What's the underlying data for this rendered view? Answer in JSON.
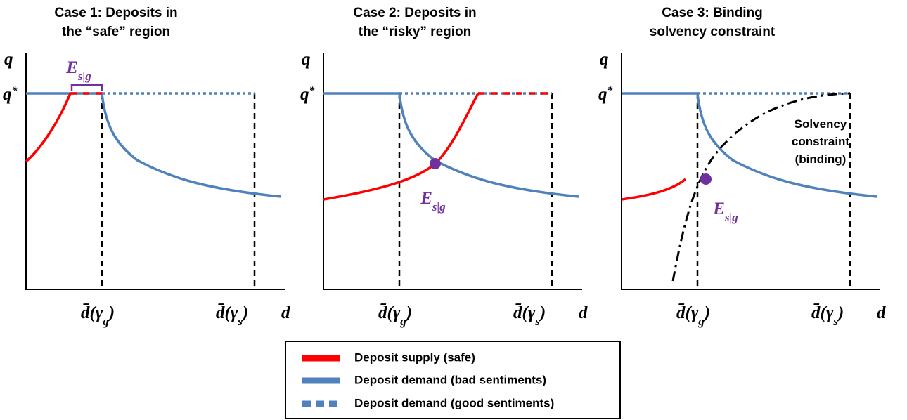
{
  "panels": [
    {
      "title": [
        "Case 1: Deposits in",
        "the “safe” region"
      ],
      "equilibrium": {
        "symbol": "E",
        "subscript": "s|g"
      }
    },
    {
      "title": [
        "Case 2: Deposits in",
        "the “risky” region"
      ],
      "equilibrium": {
        "symbol": "E",
        "subscript": "s|g"
      }
    },
    {
      "title": [
        "Case 3: Binding",
        "solvency constraint"
      ],
      "equilibrium": {
        "symbol": "E",
        "subscript": "s|g"
      },
      "annotation": [
        "Solvency",
        "constraint",
        "(binding)"
      ]
    }
  ],
  "axes": {
    "y_label": "q",
    "q_star": {
      "symbol": "q",
      "superscript": "*"
    },
    "x_label": "d",
    "x_markers": [
      {
        "symbol": "d̄",
        "open": "(γ",
        "subscript": "g",
        "close": ")"
      },
      {
        "symbol": "d̄",
        "open": "(γ",
        "subscript": "s",
        "close": ")"
      }
    ]
  },
  "legend": [
    "Deposit supply (safe)",
    "Deposit demand (bad sentiments)",
    "Deposit demand (good sentiments)"
  ]
}
